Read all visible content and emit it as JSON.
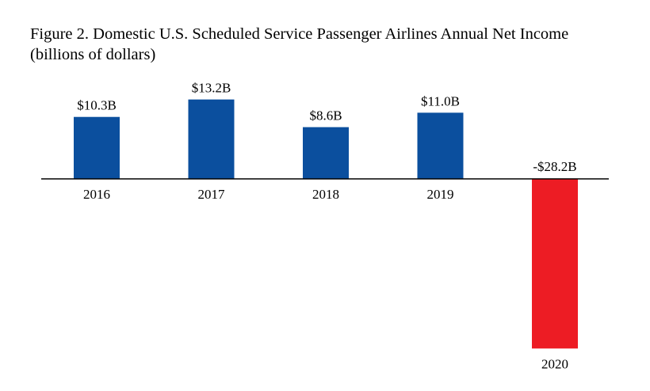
{
  "title_line1": "Figure 2. Domestic U.S. Scheduled Service Passenger Airlines Annual Net Income",
  "title_line2": "(billions of dollars)",
  "colors": {
    "positive": "#0B4F9E",
    "negative": "#ED1C24",
    "axis": "#000000"
  },
  "chart_data": {
    "type": "bar",
    "title": "Figure 2. Domestic U.S. Scheduled Service Passenger Airlines Annual Net Income (billions of dollars)",
    "xlabel": "",
    "ylabel": "",
    "categories": [
      "2016",
      "2017",
      "2018",
      "2019",
      "2020"
    ],
    "values": [
      10.3,
      13.2,
      8.6,
      11.0,
      -28.2
    ],
    "data_labels": [
      "$10.3B",
      "$13.2B",
      "$8.6B",
      "$11.0B",
      "-$28.2B"
    ],
    "ylim": [
      -28.2,
      13.2
    ],
    "grid": false,
    "legend": "none"
  }
}
